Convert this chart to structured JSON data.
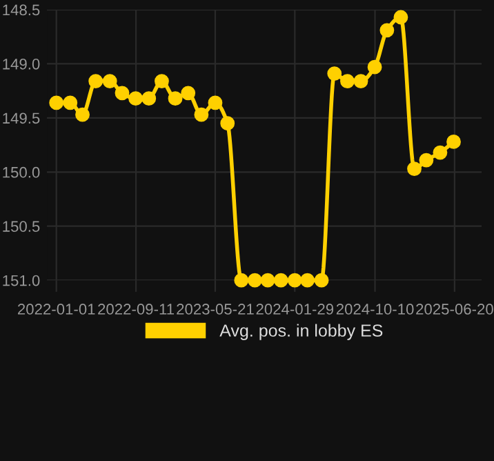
{
  "chart_data": {
    "type": "line",
    "x": [
      "2022-01-01",
      "2022-02-14",
      "2022-03-25",
      "2022-05-06",
      "2022-06-20",
      "2022-07-29",
      "2022-09-10",
      "2022-10-22",
      "2022-12-02",
      "2023-01-14",
      "2023-02-24",
      "2023-04-07",
      "2023-05-21",
      "2023-06-29",
      "2023-08-12",
      "2023-09-24",
      "2023-11-04",
      "2023-12-16",
      "2024-01-29",
      "2024-03-09",
      "2024-04-23",
      "2024-06-03",
      "2024-07-14",
      "2024-08-26",
      "2024-10-09",
      "2024-11-17",
      "2024-12-31",
      "2025-02-12",
      "2025-03-22",
      "2025-05-05",
      "2025-06-17"
    ],
    "series": [
      {
        "name": "Avg. pos. in lobby ES",
        "color": "#ffd000",
        "values": [
          149.36,
          149.36,
          149.47,
          149.16,
          149.16,
          149.27,
          149.32,
          149.32,
          149.16,
          149.32,
          149.27,
          149.47,
          149.36,
          149.55,
          151.0,
          151.0,
          151.0,
          151.0,
          151.0,
          151.0,
          151.0,
          149.09,
          149.16,
          149.16,
          149.03,
          148.69,
          148.57,
          149.97,
          149.89,
          149.82,
          149.72
        ]
      }
    ],
    "ylim": [
      151.0,
      148.5
    ],
    "yticks": [
      {
        "value": 148.5,
        "label": "148.5"
      },
      {
        "value": 149.0,
        "label": "149.0"
      },
      {
        "value": 149.5,
        "label": "149.5"
      },
      {
        "value": 150.0,
        "label": "150.0"
      },
      {
        "value": 150.5,
        "label": "150.5"
      },
      {
        "value": 151.0,
        "label": "151.0"
      }
    ],
    "xlim": [
      "2021-12-02",
      "2025-09-14"
    ],
    "xticks": [
      "2022-01-01",
      "2022-09-11",
      "2023-05-21",
      "2024-01-29",
      "2024-10-10",
      "2025-06-20"
    ],
    "grid": true,
    "legend": "bottom",
    "marker": "circle",
    "line_style": "solid"
  }
}
